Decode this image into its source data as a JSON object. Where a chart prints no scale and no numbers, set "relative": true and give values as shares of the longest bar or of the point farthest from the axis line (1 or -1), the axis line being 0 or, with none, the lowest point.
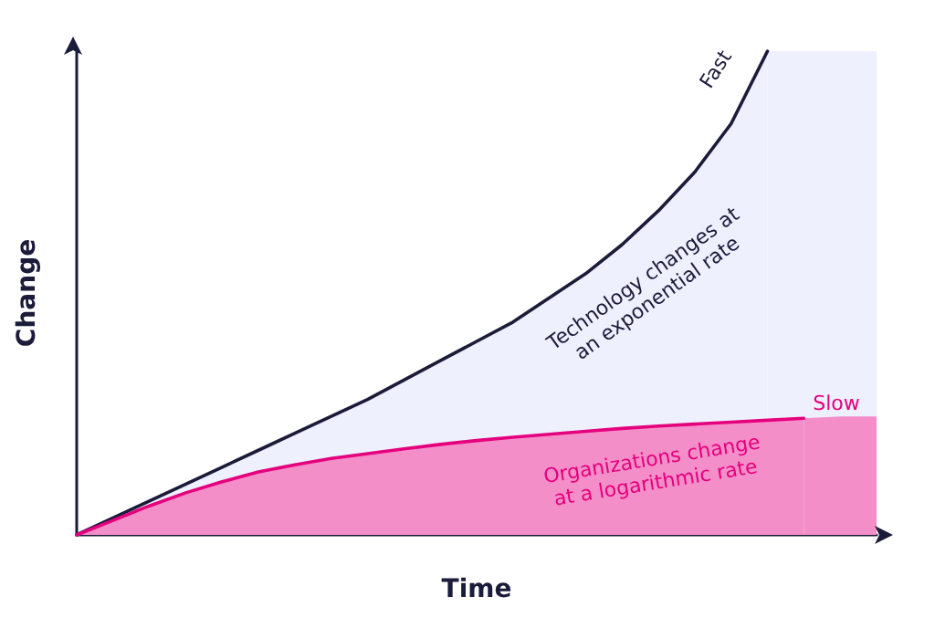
{
  "chart_data": {
    "type": "line",
    "relative": true,
    "marker": "none",
    "xlabel": "Time",
    "ylabel": "Change",
    "categories": [
      null,
      null,
      null,
      null,
      null,
      null,
      null,
      null,
      null,
      null,
      null,
      null,
      null,
      null,
      null,
      null,
      null,
      null,
      null,
      null,
      null,
      null,
      null
    ],
    "series": [
      {
        "name": "Technology changes at an exponential rate",
        "color": "#1b1b3a",
        "values": [
          0,
          0.035,
          0.07,
          0.105,
          0.14,
          0.175,
          0.21,
          0.245,
          0.28,
          0.32,
          0.36,
          0.4,
          0.44,
          0.49,
          0.54,
          0.6,
          0.67,
          0.75,
          0.85,
          1,
          null,
          null,
          null
        ]
      },
      {
        "name": "Organizations change at a logarithmic rate",
        "color": "#e5007d",
        "values": [
          0,
          0.03,
          0.06,
          0.087,
          0.11,
          0.13,
          0.145,
          0.158,
          0.168,
          0.178,
          0.187,
          0.195,
          0.202,
          0.208,
          0.214,
          0.22,
          0.225,
          0.229,
          0.233,
          0.237,
          0.241,
          null,
          null
        ]
      },
      {
        "type": "area",
        "color": "#eef0fe",
        "values": [
          null,
          null,
          null,
          null,
          null,
          null,
          null,
          null,
          null,
          null,
          null,
          null,
          null,
          null,
          null,
          null,
          null,
          null,
          null,
          1,
          1,
          1,
          1
        ]
      },
      {
        "type": "area",
        "color": "#f48ec9",
        "values": [
          null,
          null,
          null,
          null,
          null,
          null,
          null,
          null,
          null,
          null,
          null,
          null,
          null,
          null,
          null,
          null,
          null,
          null,
          null,
          null,
          0.241,
          0.245,
          0.245
        ]
      }
    ],
    "annotations": [
      "Fast",
      "Slow"
    ]
  }
}
